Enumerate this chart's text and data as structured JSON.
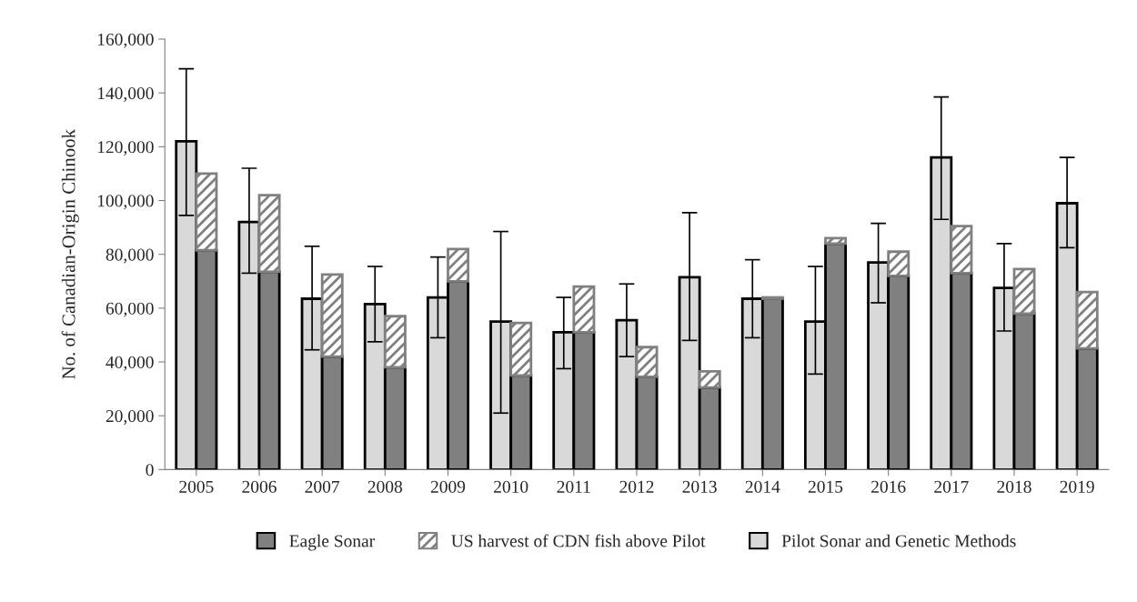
{
  "chart_data": [
    {
      "type": "bar",
      "ylabel": "No. of Canadian-Origin Chinook",
      "categories": [
        "2005",
        "2006",
        "2007",
        "2008",
        "2009",
        "2010",
        "2011",
        "2012",
        "2013",
        "2014",
        "2015",
        "2016",
        "2017",
        "2018",
        "2019"
      ],
      "series": [
        {
          "name": "Pilot Sonar and Genetic Methods",
          "color": "#d9d9d9",
          "values": [
            122000,
            92000,
            63500,
            61500,
            64000,
            55000,
            51000,
            55500,
            71500,
            63500,
            55000,
            77000,
            116000,
            67500,
            99000
          ],
          "errors": [
            [
              94500,
              149000
            ],
            [
              73000,
              112000
            ],
            [
              44500,
              83000
            ],
            [
              47500,
              75500
            ],
            [
              49000,
              79000
            ],
            [
              21000,
              88500
            ],
            [
              37500,
              64000
            ],
            [
              42000,
              69000
            ],
            [
              48000,
              95500
            ],
            [
              49000,
              78000
            ],
            [
              35500,
              75500
            ],
            [
              62000,
              91500
            ],
            [
              93000,
              138500
            ],
            [
              51500,
              84000
            ],
            [
              82500,
              116000
            ]
          ]
        }
      ],
      "ylim": [
        0,
        160000
      ],
      "yticks": [
        0,
        {
          "value": 20000,
          "label": "20,000"
        },
        {
          "value": 40000,
          "label": "40,000"
        },
        {
          "value": 60000,
          "label": "60,000"
        },
        {
          "value": 80000,
          "label": "80,000"
        },
        {
          "value": 100000,
          "label": "100,000"
        },
        {
          "value": 120000,
          "label": "120,000"
        },
        {
          "value": 140000,
          "label": "140,000"
        },
        {
          "value": 160000,
          "label": "160,000"
        }
      ],
      "grid": false,
      "legend": "bottom"
    },
    {
      "type": "bar",
      "categories": [
        "2005",
        "2006",
        "2007",
        "2008",
        "2009",
        "2010",
        "2011",
        "2012",
        "2013",
        "2014",
        "2015",
        "2016",
        "2017",
        "2018",
        "2019"
      ],
      "stacked": true,
      "series": [
        {
          "name": "Eagle Sonar",
          "color": "#808080",
          "values": [
            81500,
            73500,
            42000,
            38000,
            70000,
            35000,
            51000,
            34500,
            30500,
            63500,
            84000,
            72000,
            73000,
            58000,
            45000
          ]
        },
        {
          "name": "US harvest of CDN fish above Pilot",
          "color": "#808080",
          "values": [
            28500,
            28500,
            30500,
            19000,
            12000,
            19500,
            17000,
            11000,
            6000,
            500,
            2000,
            9000,
            17500,
            16500,
            21000
          ]
        }
      ],
      "ylim": [
        0,
        160000
      ],
      "tick_labels": false,
      "grid": false,
      "legend": "bottom"
    }
  ]
}
